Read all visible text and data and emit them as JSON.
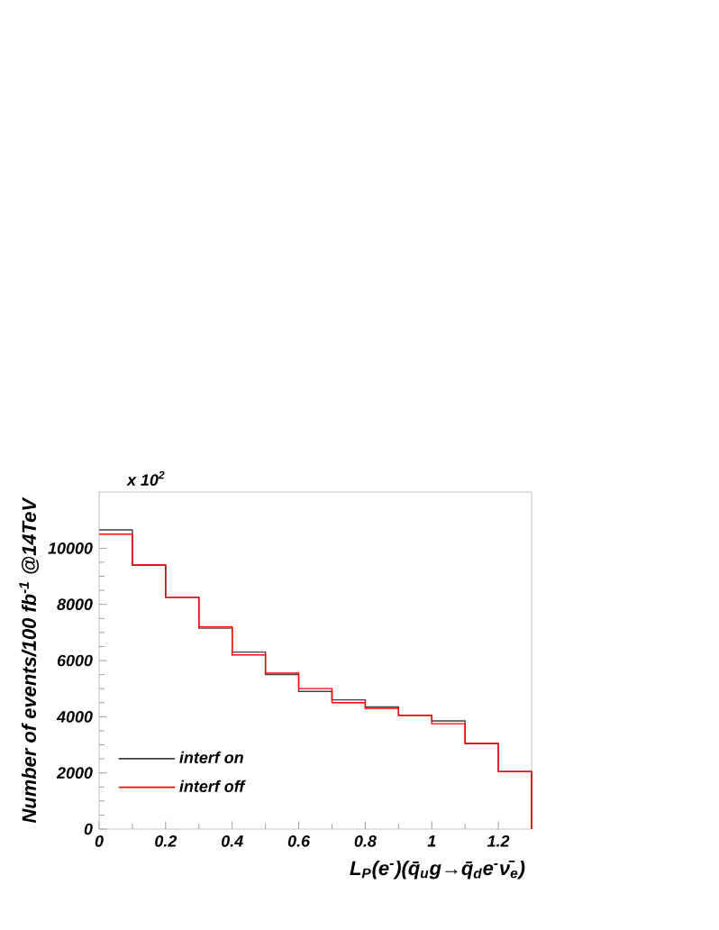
{
  "chart_data": {
    "type": "histogram",
    "bins": [
      0,
      0.1,
      0.2,
      0.3,
      0.4,
      0.5,
      0.6,
      0.7,
      0.8,
      0.9,
      1.0,
      1.1,
      1.2,
      1.3
    ],
    "series": [
      {
        "name": "interf on",
        "color": "#404040",
        "values": [
          10650,
          9400,
          8250,
          7150,
          6300,
          5500,
          4900,
          4600,
          4350,
          4050,
          3850,
          3050,
          2050
        ]
      },
      {
        "name": "interf off",
        "color": "#ff0000",
        "values": [
          10500,
          9400,
          8250,
          7200,
          6200,
          5550,
          5000,
          4500,
          4300,
          4050,
          3750,
          3050,
          2050
        ]
      }
    ],
    "xlim": [
      0,
      1.3
    ],
    "ylim": [
      0,
      12000
    ],
    "xticks": [
      0,
      0.2,
      0.4,
      0.6,
      0.8,
      1,
      1.2
    ],
    "yticks": [
      0,
      2000,
      4000,
      6000,
      8000,
      10000
    ],
    "xlabel": "L$_{P}$(e$^{-}$)(q̄$_{u}$g→q̄$_{d}$e$^{-}$ν̄$_{e}$)",
    "ylabel": "Number of events/100 fb$^{-1}$ @14TeV",
    "legend": "bottom left",
    "annotations": [
      "x 10$^{2}$"
    ]
  }
}
